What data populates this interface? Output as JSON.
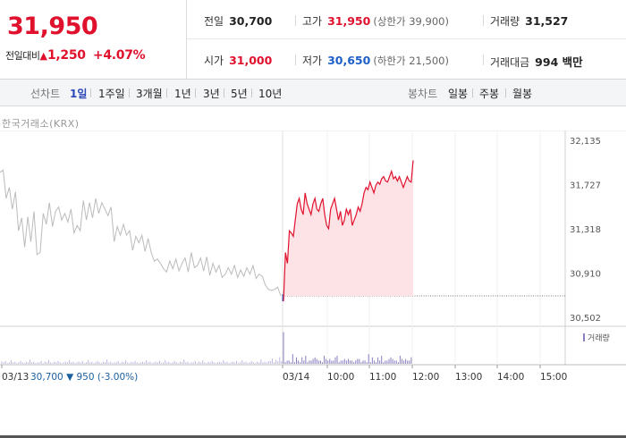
{
  "quote": {
    "price": "31,950",
    "change_label": "전일대비",
    "change_arrow": "▲",
    "change_value": "1,250",
    "change_percent": "+4.07%"
  },
  "stats": {
    "prev_close_label": "전일",
    "prev_close": "30,700",
    "high_label": "고가",
    "high": "31,950",
    "upper_limit_label": "(상한가",
    "upper_limit": "39,900)",
    "volume_label": "거래량",
    "volume": "31,527",
    "open_label": "시가",
    "open": "31,000",
    "low_label": "저가",
    "low": "30,650",
    "lower_limit_label": "(하한가",
    "lower_limit": "21,500)",
    "trade_value_label": "거래대금",
    "trade_value": "994 백만"
  },
  "toolbar": {
    "line_label": "선차트",
    "periods": [
      "1일",
      "1주일",
      "3개월",
      "1년",
      "3년",
      "5년",
      "10년"
    ],
    "active_period": "1일",
    "candle_label": "봉차트",
    "candles": [
      "일봉",
      "주봉",
      "월봉"
    ]
  },
  "exchange_label": "한국거래소(KRX)",
  "colors": {
    "up": "#e0112d",
    "down": "#1f5fc8",
    "prev_day": "#bbbbbb",
    "volume": "#8a7fc0"
  },
  "chart_data": {
    "type": "line",
    "ylim": [
      30502,
      32135
    ],
    "y_ticks": [
      "32,135",
      "31,727",
      "31,318",
      "30,910",
      "30,502"
    ],
    "x_tick_labels": [
      "03/13",
      "03/14",
      "10:00",
      "11:00",
      "12:00",
      "13:00",
      "14:00",
      "15:00"
    ],
    "prev_day_tooltip": {
      "date": "03/13",
      "close": "30,700",
      "arrow": "▼",
      "change": "950",
      "pct": "(-3.00%)"
    },
    "base_price": 30700,
    "volume_legend": "거래량",
    "series": [
      {
        "name": "03/13",
        "values": [
          31840,
          31860,
          31600,
          31700,
          31500,
          31660,
          31300,
          31420,
          31150,
          31430,
          31200,
          31480,
          31080,
          31100,
          31460,
          31360,
          31560,
          31340,
          31480,
          31520,
          31400,
          31460,
          31380,
          31500,
          31280,
          31350,
          31300,
          31580,
          31400,
          31560,
          31420,
          31600,
          31460,
          31560,
          31500,
          31440,
          31520,
          31200,
          31340,
          31260,
          31360,
          31260,
          31300,
          31120,
          31250,
          31190,
          31260,
          31110,
          31230,
          31100,
          31020,
          31040,
          31000,
          30950,
          30920,
          31020,
          30950,
          31040,
          30930,
          31000,
          31050,
          30920,
          31100,
          30960,
          30980,
          31050,
          30930,
          31060,
          30890,
          31000,
          30920,
          30980,
          30870,
          30900,
          30960,
          30900,
          30980,
          30870,
          30940,
          30880,
          30960,
          30900,
          30980,
          30860,
          30900,
          30880,
          30800,
          30760,
          30750,
          30760,
          30780,
          30700
        ]
      },
      {
        "name": "03/14",
        "values": [
          30650,
          31100,
          31000,
          31300,
          31280,
          31250,
          31400,
          31550,
          31600,
          31500,
          31450,
          31650,
          31550,
          31500,
          31450,
          31550,
          31600,
          31500,
          31480,
          31550,
          31600,
          31450,
          31350,
          31320,
          31500,
          31550,
          31600,
          31500,
          31400,
          31480,
          31350,
          31400,
          31500,
          31450,
          31500,
          31350,
          31400,
          31450,
          31520,
          31480,
          31550,
          31650,
          31700,
          31680,
          31750,
          31700,
          31650,
          31720,
          31750,
          31730,
          31780,
          31800,
          31760,
          31750,
          31800,
          31850,
          31780,
          31800,
          31760,
          31800,
          31750,
          31700,
          31750,
          31800,
          31760,
          31750,
          31950
        ]
      }
    ]
  }
}
